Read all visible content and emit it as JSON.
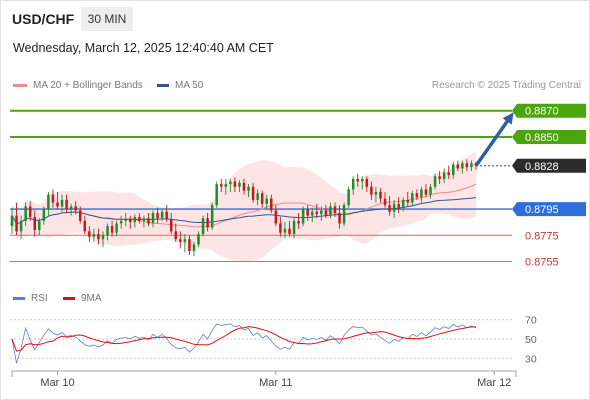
{
  "header": {
    "symbol": "USD/CHF",
    "timeframe": "30 MIN",
    "datetime": "Wednesday, March 12, 2025 12:40:40 AM CET"
  },
  "legend": {
    "bollinger": {
      "label": "MA 20 + Bollinger Bands",
      "color": "#f08a8a"
    },
    "ma50": {
      "label": "MA 50",
      "color": "#2f5597"
    }
  },
  "credit": "Research © 2025 Trading Central",
  "rsi_legend": {
    "rsi": {
      "label": "RSI",
      "color": "#5b7fd6"
    },
    "ma9": {
      "label": "9MA",
      "color": "#e01010"
    }
  },
  "colors": {
    "up": "#1e8c2e",
    "down": "#c41a1a",
    "resistance": "#4ca40e",
    "support": "#e06666",
    "pivot": "#2f6fdc",
    "arrow": "#2f5fa0",
    "band": "#fde0e0"
  },
  "chart_data": {
    "type": "candlestick",
    "ylim": [
      0.8747,
      0.8882
    ],
    "xlabels": [
      {
        "label": "Mar 10",
        "index": 10
      },
      {
        "label": "Mar 11",
        "index": 58
      },
      {
        "label": "Mar 12",
        "index": 106
      }
    ],
    "candles": [
      [
        0.8782,
        0.8796,
        0.8776,
        0.879
      ],
      [
        0.879,
        0.88,
        0.8775,
        0.8778
      ],
      [
        0.8778,
        0.879,
        0.8772,
        0.8786
      ],
      [
        0.8786,
        0.88,
        0.8782,
        0.8797
      ],
      [
        0.8797,
        0.8801,
        0.8786,
        0.8789
      ],
      [
        0.8789,
        0.8794,
        0.8774,
        0.8779
      ],
      [
        0.8779,
        0.8788,
        0.8775,
        0.8786
      ],
      [
        0.8786,
        0.8797,
        0.8783,
        0.8795
      ],
      [
        0.8795,
        0.8808,
        0.879,
        0.8806
      ],
      [
        0.8806,
        0.881,
        0.8796,
        0.88
      ],
      [
        0.88,
        0.8808,
        0.8795,
        0.8797
      ],
      [
        0.8797,
        0.8806,
        0.8793,
        0.8802
      ],
      [
        0.8802,
        0.8806,
        0.8792,
        0.8795
      ],
      [
        0.8795,
        0.8799,
        0.879,
        0.8797
      ],
      [
        0.8797,
        0.8801,
        0.8791,
        0.8794
      ],
      [
        0.8794,
        0.8797,
        0.8784,
        0.8786
      ],
      [
        0.8786,
        0.879,
        0.8776,
        0.8778
      ],
      [
        0.8778,
        0.8782,
        0.877,
        0.8774
      ],
      [
        0.8774,
        0.878,
        0.877,
        0.8776
      ],
      [
        0.8776,
        0.878,
        0.8768,
        0.8772
      ],
      [
        0.8772,
        0.8778,
        0.8766,
        0.8775
      ],
      [
        0.8775,
        0.8784,
        0.8771,
        0.8782
      ],
      [
        0.8782,
        0.8786,
        0.8774,
        0.8777
      ],
      [
        0.8777,
        0.8786,
        0.8774,
        0.8784
      ],
      [
        0.8784,
        0.879,
        0.878,
        0.8786
      ],
      [
        0.8786,
        0.8792,
        0.8782,
        0.8787
      ],
      [
        0.8787,
        0.879,
        0.878,
        0.8785
      ],
      [
        0.8785,
        0.8791,
        0.8781,
        0.8789
      ],
      [
        0.8789,
        0.8792,
        0.8784,
        0.8786
      ],
      [
        0.8786,
        0.879,
        0.8781,
        0.8788
      ],
      [
        0.8788,
        0.8792,
        0.8782,
        0.8784
      ],
      [
        0.8784,
        0.8794,
        0.8781,
        0.8792
      ],
      [
        0.8792,
        0.8796,
        0.8784,
        0.8788
      ],
      [
        0.8788,
        0.8795,
        0.8786,
        0.8793
      ],
      [
        0.8793,
        0.8798,
        0.8785,
        0.8787
      ],
      [
        0.8787,
        0.8792,
        0.8776,
        0.8778
      ],
      [
        0.8778,
        0.8784,
        0.877,
        0.8772
      ],
      [
        0.8772,
        0.8778,
        0.8765,
        0.877
      ],
      [
        0.877,
        0.8776,
        0.8762,
        0.8772
      ],
      [
        0.8772,
        0.8775,
        0.876,
        0.8763
      ],
      [
        0.8763,
        0.877,
        0.8759,
        0.8768
      ],
      [
        0.8768,
        0.8778,
        0.8766,
        0.8776
      ],
      [
        0.8776,
        0.879,
        0.8774,
        0.8788
      ],
      [
        0.8788,
        0.8792,
        0.8778,
        0.8781
      ],
      [
        0.8781,
        0.88,
        0.8779,
        0.8798
      ],
      [
        0.8798,
        0.8816,
        0.8796,
        0.8814
      ],
      [
        0.8814,
        0.8818,
        0.8808,
        0.8812
      ],
      [
        0.8812,
        0.8818,
        0.8806,
        0.8814
      ],
      [
        0.8814,
        0.8818,
        0.8808,
        0.8816
      ],
      [
        0.8816,
        0.8819,
        0.8808,
        0.8812
      ],
      [
        0.8812,
        0.8817,
        0.8808,
        0.8815
      ],
      [
        0.8815,
        0.8818,
        0.8806,
        0.8809
      ],
      [
        0.8809,
        0.8814,
        0.8804,
        0.8812
      ],
      [
        0.8812,
        0.8815,
        0.88,
        0.8802
      ],
      [
        0.8802,
        0.881,
        0.8798,
        0.8807
      ],
      [
        0.8807,
        0.8809,
        0.8796,
        0.8799
      ],
      [
        0.8799,
        0.8806,
        0.8795,
        0.8803
      ],
      [
        0.8803,
        0.8806,
        0.8792,
        0.8794
      ],
      [
        0.8794,
        0.8798,
        0.8782,
        0.8784
      ],
      [
        0.8784,
        0.8789,
        0.8774,
        0.8777
      ],
      [
        0.8777,
        0.8785,
        0.8773,
        0.878
      ],
      [
        0.878,
        0.8786,
        0.8774,
        0.8776
      ],
      [
        0.8776,
        0.8788,
        0.8773,
        0.8786
      ],
      [
        0.8786,
        0.8792,
        0.878,
        0.8784
      ],
      [
        0.8784,
        0.8797,
        0.8782,
        0.8795
      ],
      [
        0.8795,
        0.8798,
        0.8786,
        0.879
      ],
      [
        0.879,
        0.8796,
        0.8785,
        0.8793
      ],
      [
        0.8793,
        0.8799,
        0.8788,
        0.8791
      ],
      [
        0.8791,
        0.8797,
        0.8786,
        0.8794
      ],
      [
        0.8794,
        0.8798,
        0.8788,
        0.879
      ],
      [
        0.879,
        0.88,
        0.8788,
        0.8797
      ],
      [
        0.8797,
        0.88,
        0.8789,
        0.8792
      ],
      [
        0.8792,
        0.8798,
        0.878,
        0.8784
      ],
      [
        0.8784,
        0.88,
        0.8782,
        0.8798
      ],
      [
        0.8798,
        0.8812,
        0.8796,
        0.881
      ],
      [
        0.881,
        0.882,
        0.8806,
        0.8818
      ],
      [
        0.8818,
        0.8822,
        0.8812,
        0.8816
      ],
      [
        0.8816,
        0.882,
        0.881,
        0.8818
      ],
      [
        0.8818,
        0.882,
        0.8808,
        0.8812
      ],
      [
        0.8812,
        0.8816,
        0.8802,
        0.8806
      ],
      [
        0.8806,
        0.8812,
        0.88,
        0.8808
      ],
      [
        0.8808,
        0.8811,
        0.88,
        0.8803
      ],
      [
        0.8803,
        0.8808,
        0.8796,
        0.8798
      ],
      [
        0.8798,
        0.8805,
        0.879,
        0.8793
      ],
      [
        0.8793,
        0.8802,
        0.8788,
        0.8799
      ],
      [
        0.8799,
        0.8804,
        0.8792,
        0.8796
      ],
      [
        0.8796,
        0.8804,
        0.8793,
        0.8802
      ],
      [
        0.8802,
        0.8808,
        0.8797,
        0.88
      ],
      [
        0.88,
        0.8809,
        0.8797,
        0.8807
      ],
      [
        0.8807,
        0.881,
        0.8802,
        0.8804
      ],
      [
        0.8804,
        0.8812,
        0.88,
        0.881
      ],
      [
        0.881,
        0.8814,
        0.8804,
        0.8806
      ],
      [
        0.8806,
        0.8814,
        0.8803,
        0.8812
      ],
      [
        0.8812,
        0.8822,
        0.881,
        0.882
      ],
      [
        0.882,
        0.8824,
        0.8814,
        0.8818
      ],
      [
        0.8818,
        0.8826,
        0.8815,
        0.8823
      ],
      [
        0.8823,
        0.8828,
        0.8818,
        0.8821
      ],
      [
        0.8821,
        0.8831,
        0.8818,
        0.8829
      ],
      [
        0.8829,
        0.8832,
        0.8824,
        0.8826
      ],
      [
        0.8826,
        0.8832,
        0.8822,
        0.883
      ],
      [
        0.883,
        0.8833,
        0.8824,
        0.8827
      ],
      [
        0.8827,
        0.8832,
        0.8824,
        0.883
      ],
      [
        0.883,
        0.8831,
        0.8825,
        0.8828
      ]
    ],
    "levels": [
      {
        "label": "0.8870",
        "value": 0.887,
        "type": "resistance"
      },
      {
        "label": "0.8850",
        "value": 0.885,
        "type": "resistance"
      },
      {
        "label": "0.8828",
        "value": 0.8828,
        "type": "last"
      },
      {
        "label": "0.8795",
        "value": 0.8795,
        "type": "pivot"
      },
      {
        "label": "0.8775",
        "value": 0.8775,
        "type": "support"
      },
      {
        "label": "0.8755",
        "value": 0.8755,
        "type": "support"
      }
    ],
    "rsi": {
      "levels": [
        {
          "label": "70",
          "value": 70
        },
        {
          "label": "50",
          "value": 50
        },
        {
          "label": "30",
          "value": 30
        }
      ],
      "ylim": [
        22,
        78
      ]
    }
  }
}
